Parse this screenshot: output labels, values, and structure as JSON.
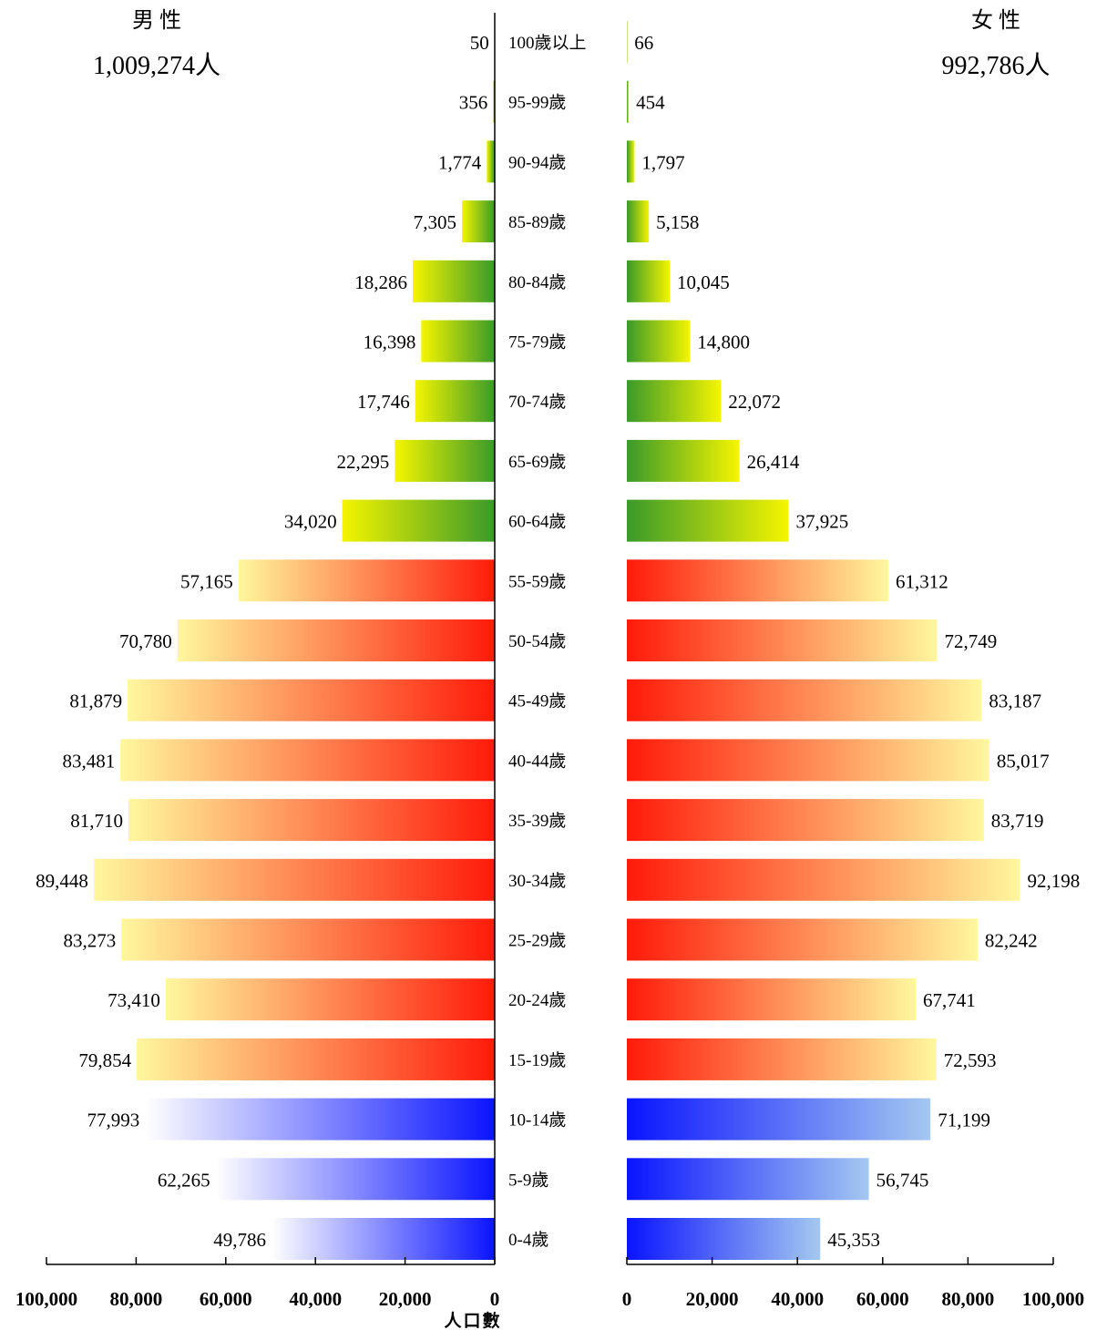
{
  "chart_data": {
    "type": "bar",
    "categories": [
      "100歲以上",
      "95-99歲",
      "90-94歲",
      "85-89歲",
      "80-84歲",
      "75-79歲",
      "70-74歲",
      "65-69歲",
      "60-64歲",
      "55-59歲",
      "50-54歲",
      "45-49歲",
      "40-44歲",
      "35-39歲",
      "30-34歲",
      "25-29歲",
      "20-24歲",
      "15-19歲",
      "10-14歲",
      "5-9歲",
      "0-4歲"
    ],
    "series": [
      {
        "name": "男性",
        "total_label": "1,009,274人",
        "values": [
          50,
          356,
          1774,
          7305,
          18286,
          16398,
          17746,
          22295,
          34020,
          57165,
          70780,
          81879,
          83481,
          81710,
          89448,
          83273,
          73410,
          79854,
          77993,
          62265,
          49786
        ],
        "labels": [
          "50",
          "356",
          "1,774",
          "7,305",
          "18,286",
          "16,398",
          "17,746",
          "22,295",
          "34,020",
          "57,165",
          "70,780",
          "81,879",
          "83,481",
          "81,710",
          "89,448",
          "83,273",
          "73,410",
          "79,854",
          "77,993",
          "62,265",
          "49,786"
        ]
      },
      {
        "name": "女性",
        "total_label": "992,786人",
        "values": [
          66,
          454,
          1797,
          5158,
          10045,
          14800,
          22072,
          26414,
          37925,
          61312,
          72749,
          83187,
          85017,
          83719,
          92198,
          82242,
          67741,
          72593,
          71199,
          56745,
          45353
        ],
        "labels": [
          "66",
          "454",
          "1,797",
          "5,158",
          "10,045",
          "14,800",
          "22,072",
          "26,414",
          "37,925",
          "61,312",
          "72,749",
          "83,187",
          "85,017",
          "83,719",
          "92,198",
          "82,242",
          "67,741",
          "72,593",
          "71,199",
          "56,745",
          "45,353"
        ]
      }
    ],
    "xlabel": "人口數",
    "xlim": [
      0,
      100000
    ],
    "ticks": [
      0,
      20000,
      40000,
      60000,
      80000,
      100000
    ],
    "tick_labels": [
      "0",
      "20,000",
      "40,000",
      "60,000",
      "80,000",
      "100,000"
    ],
    "grid": false,
    "age_groups": [
      {
        "range": [
          0,
          2
        ],
        "color": "#0000ff"
      },
      {
        "range": [
          3,
          7
        ],
        "color": "#ff0000"
      },
      {
        "range": [
          8,
          12
        ],
        "color": "#f5f500"
      }
    ],
    "colors": {
      "young": "#0a14ff",
      "young_light": "#a4c8f0",
      "working": "#ff1a0a",
      "working_light": "#fff79e",
      "elderly_green": "#3a9a2a",
      "elderly_yellow": "#f5f500"
    }
  }
}
